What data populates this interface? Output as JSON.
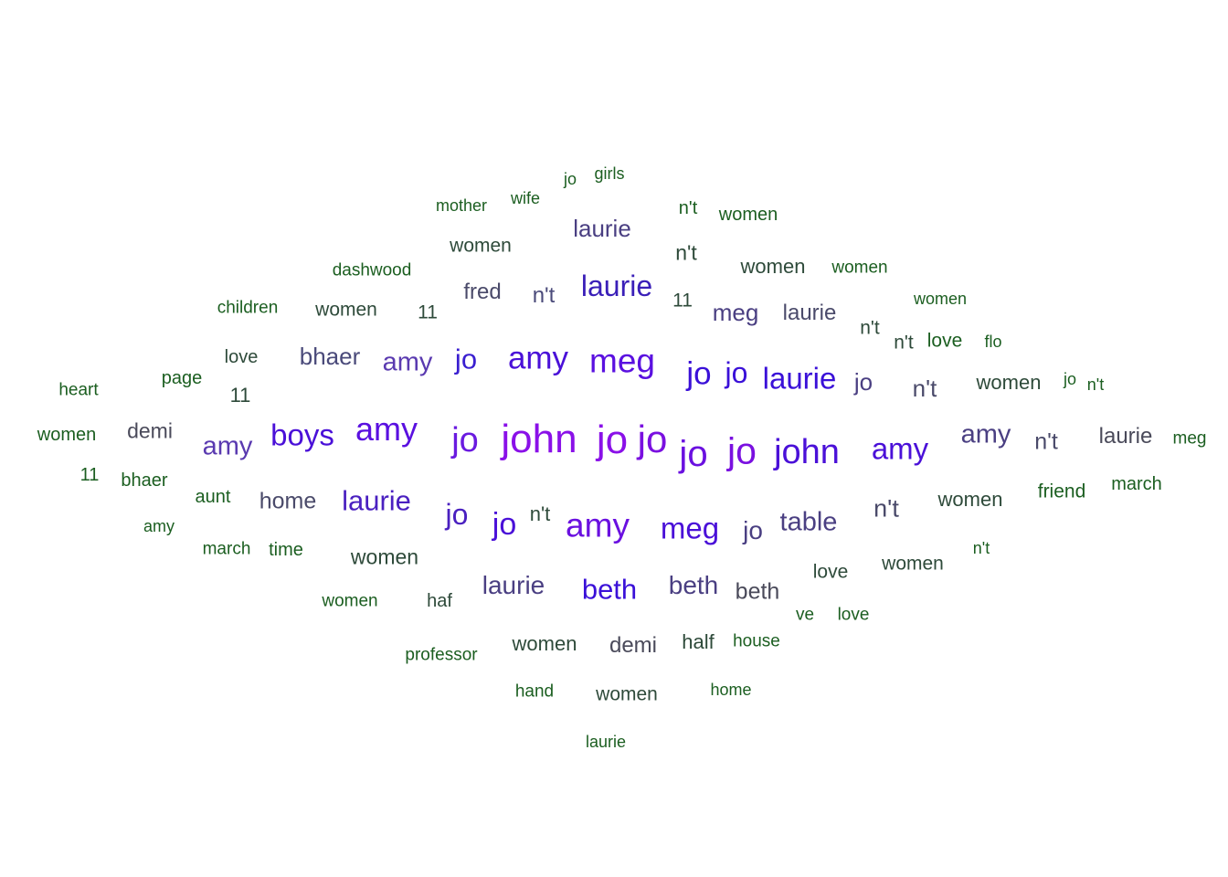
{
  "words": [
    {
      "text": "jo",
      "color": "#1b5e20",
      "size": 18
    },
    {
      "text": "girls",
      "color": "#1b5e20",
      "size": 18
    },
    {
      "text": "wife",
      "color": "#1b5e20",
      "size": 18
    },
    {
      "text": "mother",
      "color": "#1b5e20",
      "size": 18
    },
    {
      "text": "n't",
      "color": "#1b5e20",
      "size": 20
    },
    {
      "text": "women",
      "color": "#1b5e20",
      "size": 20
    },
    {
      "text": "laurie",
      "color": "#4a3f82",
      "size": 26
    },
    {
      "text": "women",
      "color": "#2e4a3a",
      "size": 21
    },
    {
      "text": "n't",
      "color": "#2e4a3a",
      "size": 23
    },
    {
      "text": "dashwood",
      "color": "#1b5e20",
      "size": 19
    },
    {
      "text": "women",
      "color": "#2e4a3a",
      "size": 22
    },
    {
      "text": "women",
      "color": "#1b5e20",
      "size": 19
    },
    {
      "text": "fred",
      "color": "#4a4a6a",
      "size": 24
    },
    {
      "text": "n't",
      "color": "#4a4a7a",
      "size": 24
    },
    {
      "text": "laurie",
      "color": "#3a1fb8",
      "size": 32
    },
    {
      "text": "11",
      "color": "#2e4a3a",
      "size": 21
    },
    {
      "text": "women",
      "color": "#1b5e20",
      "size": 18
    },
    {
      "text": "children",
      "color": "#1b5e20",
      "size": 19
    },
    {
      "text": "women",
      "color": "#2e4a3a",
      "size": 21
    },
    {
      "text": "11",
      "color": "#2e4a3a",
      "size": 21
    },
    {
      "text": "meg",
      "color": "#4a3f82",
      "size": 26
    },
    {
      "text": "laurie",
      "color": "#4a4a6a",
      "size": 24
    },
    {
      "text": "n't",
      "color": "#2e4a3a",
      "size": 21
    },
    {
      "text": "n't",
      "color": "#2e4a3a",
      "size": 21
    },
    {
      "text": "love",
      "color": "#1b5e20",
      "size": 21
    },
    {
      "text": "flo",
      "color": "#1b5e20",
      "size": 18
    },
    {
      "text": "love",
      "color": "#2e4a3a",
      "size": 20
    },
    {
      "text": "bhaer",
      "color": "#4a4a7a",
      "size": 26
    },
    {
      "text": "amy",
      "color": "#5a3ab0",
      "size": 29
    },
    {
      "text": "jo",
      "color": "#3a1fd0",
      "size": 31
    },
    {
      "text": "amy",
      "color": "#4a10d8",
      "size": 35
    },
    {
      "text": "meg",
      "color": "#5a10e0",
      "size": 37
    },
    {
      "text": "jo",
      "color": "#3a10d8",
      "size": 35
    },
    {
      "text": "jo",
      "color": "#3a10d8",
      "size": 32
    },
    {
      "text": "laurie",
      "color": "#3a10d8",
      "size": 33
    },
    {
      "text": "jo",
      "color": "#4a3f82",
      "size": 26
    },
    {
      "text": "n't",
      "color": "#4a4a6a",
      "size": 26
    },
    {
      "text": "women",
      "color": "#2e4a3a",
      "size": 22
    },
    {
      "text": "jo",
      "color": "#1b5e20",
      "size": 18
    },
    {
      "text": "n't",
      "color": "#1b5e20",
      "size": 18
    },
    {
      "text": "heart",
      "color": "#1b5e20",
      "size": 19
    },
    {
      "text": "page",
      "color": "#1b5e20",
      "size": 20
    },
    {
      "text": "11",
      "color": "#2e4a3a",
      "size": 22
    },
    {
      "text": "women",
      "color": "#1b5e20",
      "size": 20
    },
    {
      "text": "demi",
      "color": "#4a4a5a",
      "size": 23
    },
    {
      "text": "amy",
      "color": "#5a3ab0",
      "size": 29
    },
    {
      "text": "boys",
      "color": "#4a10d8",
      "size": 33
    },
    {
      "text": "amy",
      "color": "#5a10e0",
      "size": 36
    },
    {
      "text": "jo",
      "color": "#6a1ae0",
      "size": 38
    },
    {
      "text": "john",
      "color": "#8a10e8",
      "size": 44
    },
    {
      "text": "jo",
      "color": "#8a10e8",
      "size": 44
    },
    {
      "text": "jo",
      "color": "#7a10e0",
      "size": 42
    },
    {
      "text": "jo",
      "color": "#6a10e0",
      "size": 40
    },
    {
      "text": "jo",
      "color": "#7a10e0",
      "size": 41
    },
    {
      "text": "john",
      "color": "#4a10d8",
      "size": 38
    },
    {
      "text": "amy",
      "color": "#4a10d8",
      "size": 33
    },
    {
      "text": "amy",
      "color": "#4a3f82",
      "size": 29
    },
    {
      "text": "n't",
      "color": "#4a4a6a",
      "size": 25
    },
    {
      "text": "laurie",
      "color": "#4a4a5a",
      "size": 24
    },
    {
      "text": "meg",
      "color": "#1b5e20",
      "size": 19
    },
    {
      "text": "11",
      "color": "#1b5e20",
      "size": 20
    },
    {
      "text": "bhaer",
      "color": "#1b5e20",
      "size": 20
    },
    {
      "text": "aunt",
      "color": "#1b5e20",
      "size": 20
    },
    {
      "text": "home",
      "color": "#4a4a6a",
      "size": 25
    },
    {
      "text": "laurie",
      "color": "#4a20c0",
      "size": 31
    },
    {
      "text": "jo",
      "color": "#4a20c0",
      "size": 32
    },
    {
      "text": "jo",
      "color": "#4a10d8",
      "size": 34
    },
    {
      "text": "n't",
      "color": "#2e4a3a",
      "size": 22
    },
    {
      "text": "amy",
      "color": "#6a10e0",
      "size": 37
    },
    {
      "text": "meg",
      "color": "#4a10d8",
      "size": 33
    },
    {
      "text": "jo",
      "color": "#4a3f82",
      "size": 28
    },
    {
      "text": "table",
      "color": "#4a3f82",
      "size": 29
    },
    {
      "text": "n't",
      "color": "#4a4a6a",
      "size": 27
    },
    {
      "text": "women",
      "color": "#2e4a3a",
      "size": 22
    },
    {
      "text": "friend",
      "color": "#1b5e20",
      "size": 21
    },
    {
      "text": "march",
      "color": "#1b5e20",
      "size": 20
    },
    {
      "text": "amy",
      "color": "#1b5e20",
      "size": 18
    },
    {
      "text": "march",
      "color": "#1b5e20",
      "size": 19
    },
    {
      "text": "time",
      "color": "#1b5e20",
      "size": 20
    },
    {
      "text": "women",
      "color": "#2e4a3a",
      "size": 23
    },
    {
      "text": "laurie",
      "color": "#4a3f82",
      "size": 28
    },
    {
      "text": "beth",
      "color": "#3a10d8",
      "size": 31
    },
    {
      "text": "beth",
      "color": "#4a3f82",
      "size": 28
    },
    {
      "text": "beth",
      "color": "#4a4a5a",
      "size": 25
    },
    {
      "text": "love",
      "color": "#2e4a3a",
      "size": 21
    },
    {
      "text": "women",
      "color": "#2e4a3a",
      "size": 21
    },
    {
      "text": "n't",
      "color": "#1b5e20",
      "size": 18
    },
    {
      "text": "women",
      "color": "#1b5e20",
      "size": 19
    },
    {
      "text": "haf",
      "color": "#2e4a3a",
      "size": 20
    },
    {
      "text": "ve",
      "color": "#1b5e20",
      "size": 19
    },
    {
      "text": "love",
      "color": "#1b5e20",
      "size": 19
    },
    {
      "text": "professor",
      "color": "#1b5e20",
      "size": 19
    },
    {
      "text": "women",
      "color": "#2e4a3a",
      "size": 22
    },
    {
      "text": "demi",
      "color": "#4a4a5a",
      "size": 24
    },
    {
      "text": "half",
      "color": "#2e4a3a",
      "size": 22
    },
    {
      "text": "house",
      "color": "#1b5e20",
      "size": 19
    },
    {
      "text": "hand",
      "color": "#1b5e20",
      "size": 19
    },
    {
      "text": "women",
      "color": "#2e4a3a",
      "size": 21
    },
    {
      "text": "home",
      "color": "#1b5e20",
      "size": 18
    },
    {
      "text": "laurie",
      "color": "#1b5e20",
      "size": 18
    }
  ]
}
